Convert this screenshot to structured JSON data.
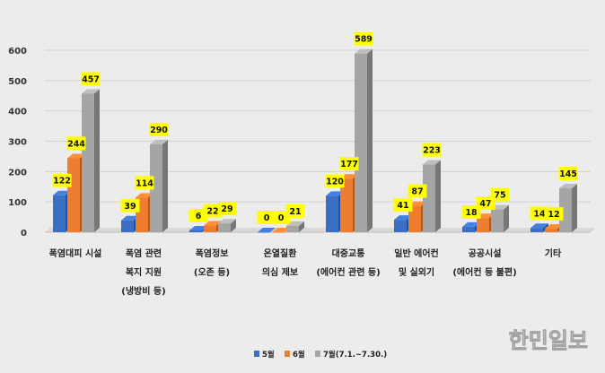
{
  "chart_data": {
    "type": "bar",
    "title": "",
    "xlabel": "",
    "ylabel": "",
    "ylim": [
      0,
      600
    ],
    "yticks": [
      0,
      100,
      200,
      300,
      400,
      500,
      600
    ],
    "grid": true,
    "legend_position": "bottom",
    "categories": [
      [
        "폭염대피 시설"
      ],
      [
        "폭염 관련",
        "복지 지원",
        "(냉방비 등)"
      ],
      [
        "폭염정보",
        "(오존 등)"
      ],
      [
        "온열질환",
        "의심 제보"
      ],
      [
        "대중교통",
        "(에어컨 관련 등)"
      ],
      [
        "일반 에어컨",
        "및 실외기"
      ],
      [
        "공공시설",
        "(에어컨 등 불편)"
      ],
      [
        "기타"
      ]
    ],
    "series": [
      {
        "name": "5월",
        "color": "#3a6fc4",
        "values": [
          122,
          39,
          6,
          0,
          120,
          41,
          18,
          14
        ]
      },
      {
        "name": "6월",
        "color": "#ed7d31",
        "values": [
          244,
          114,
          22,
          0,
          177,
          87,
          47,
          12
        ]
      },
      {
        "name": "7월(7.1.~7.30.)",
        "color": "#a5a5a5",
        "values": [
          457,
          290,
          29,
          21,
          589,
          223,
          75,
          145
        ]
      }
    ],
    "data_label_bg": "#ffff00"
  },
  "watermark": "한민일보"
}
